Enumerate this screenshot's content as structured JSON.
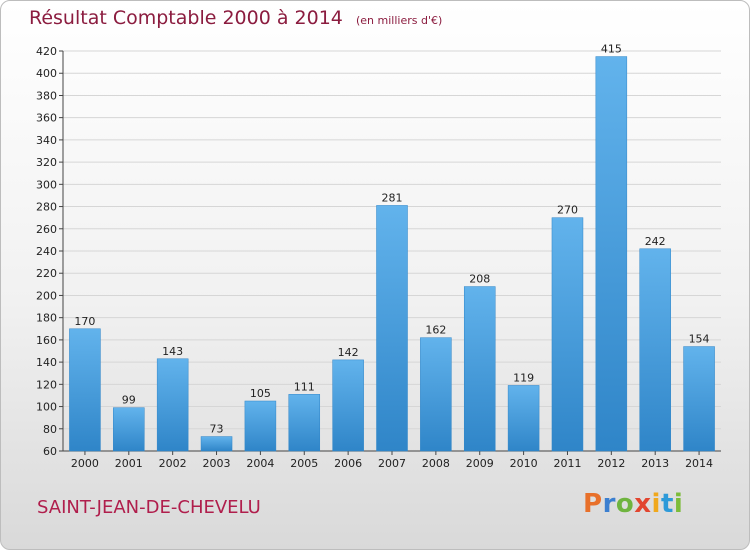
{
  "header": {
    "title": "Résultat Comptable 2000 à 2014",
    "subtitle": "(en milliers d'€)"
  },
  "footer": {
    "commune": "SAINT-JEAN-DE-CHEVELU",
    "logo": "Proxiti"
  },
  "colors": {
    "bar": "#2f85c8",
    "bar_light": "#62b3ec",
    "title": "#8b1c3f",
    "commune": "#b01e4c"
  },
  "chart_data": {
    "type": "bar",
    "title": "Résultat Comptable 2000 à 2014",
    "ylabel": "en milliers d'€",
    "xlabel": "",
    "categories": [
      "2000",
      "2001",
      "2002",
      "2003",
      "2004",
      "2005",
      "2006",
      "2007",
      "2008",
      "2009",
      "2010",
      "2011",
      "2012",
      "2013",
      "2014"
    ],
    "values": [
      170,
      99,
      143,
      73,
      105,
      111,
      142,
      281,
      162,
      208,
      119,
      270,
      415,
      242,
      154
    ],
    "ylim": [
      60,
      420
    ],
    "yticks": [
      60,
      80,
      100,
      120,
      140,
      160,
      180,
      200,
      220,
      240,
      260,
      280,
      300,
      320,
      340,
      360,
      380,
      400,
      420
    ],
    "grid": true,
    "legend": "none"
  }
}
